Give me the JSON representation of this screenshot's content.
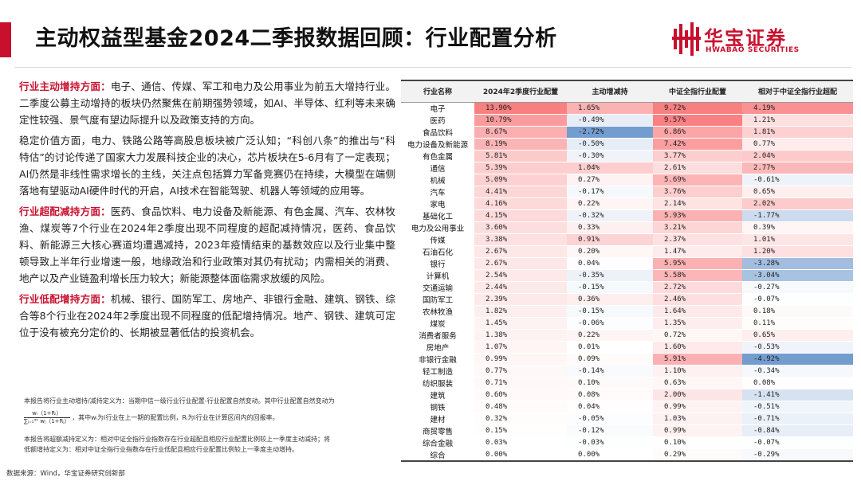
{
  "title": "主动权益型基金2024二季报数据回顾：行业配置分析",
  "logo": {
    "cn": "华宝证券",
    "en": "HWABAO SECURITIES"
  },
  "paragraphs": [
    {
      "head": "行业主动增持方面：",
      "text": "电子、通信、传媒、军工和电力及公用事业为前五大增持行业。二季度公募主动增持的板块仍然聚焦在前期强势领域，如AI、半导体、红利等未来确定性较强、景气度有望边际提升以及政策支持的方向。"
    },
    {
      "head": "",
      "text": "稳定价值方面，电力、铁路公路等高股息板块被广泛认知；“科创八条”的推出与“科特估”的讨论传递了国家大力发展科技企业的决心，芯片板块在5-6月有了一定表现；AI仍然是非线性需求增长的主线，关注点包括算力军备竞赛仍在持续，大模型在端侧落地有望驱动AI硬件时代的开启，AI技术在智能驾驶、机器人等领域的应用等。"
    },
    {
      "head": "行业超配减持方面：",
      "text": "医药、食品饮料、电力设备及新能源、有色金属、汽车、农林牧渔、煤炭等7个行业在2024年2季度出现不同程度的超配减持情况，医药、食品饮料、新能源三大核心赛道均遭遇减持，2023年疫情结束的基数效应以及行业集中整顿导致上半年行业增速一般，地缘政治和行业政策对其仍有扰动；内需相关的消费、地产以及产业链盈利增长压力较大；新能源整体面临需求放缓的风险。"
    },
    {
      "head": "行业低配增持方面：",
      "text": "机械、银行、国防军工、房地产、非银行金融、建筑、钢铁、综合等8个行业在2024年2季度出现不同程度的低配增持情况。地产、钢铁、建筑可定位于没有被充分定价的、长期被显著低估的投资机会。"
    }
  ],
  "notes": {
    "n1": "本报告将行业主动增持/减持定义为：当期中信一级行业行业配置-行业配置自然变动。其中行业配置自然变动为",
    "formula_num": "wᵢ（1+Rᵢ）",
    "formula_den": "∑ⱼ₌₁³⁰ wⱼ（1+Rⱼ）",
    "formula_tail": "，其中wᵢ为i行业在上一期的配置比例，Rᵢ为i行业在计算区间内的回报率。",
    "n2": "本报告将超额减持定义为：相对中证全指行业指数存在行业超配且相应行业配置比例较上一季度主动减持；将",
    "n3": "低额增持定义为：相对中证全指行业指数存在行业低配且相应行业配置比例较上一季度主动增持。"
  },
  "source": "数据来源：Wind，华宝证券研究创新部",
  "table": {
    "headers": [
      "行业名称",
      "2024年2季度行业配置",
      "主动增减持",
      "中证全指行业配置",
      "相对于中证全指行业超配"
    ],
    "rows": [
      [
        "电子",
        "13.90%",
        "1.65%",
        "9.72%",
        "4.19%"
      ],
      [
        "医药",
        "10.79%",
        "-0.49%",
        "9.57%",
        "1.21%"
      ],
      [
        "食品饮料",
        "8.67%",
        "-2.72%",
        "6.86%",
        "1.81%"
      ],
      [
        "电力设备及新能源",
        "8.19%",
        "-0.50%",
        "7.42%",
        "0.77%"
      ],
      [
        "有色金属",
        "5.81%",
        "-0.30%",
        "3.77%",
        "2.04%"
      ],
      [
        "通信",
        "5.39%",
        "1.04%",
        "2.61%",
        "2.77%"
      ],
      [
        "机械",
        "5.09%",
        "0.27%",
        "5.69%",
        "-0.61%"
      ],
      [
        "汽车",
        "4.41%",
        "-0.17%",
        "3.76%",
        "0.65%"
      ],
      [
        "家电",
        "4.16%",
        "0.22%",
        "2.14%",
        "2.02%"
      ],
      [
        "基础化工",
        "4.15%",
        "-0.32%",
        "5.93%",
        "-1.77%"
      ],
      [
        "电力及公用事业",
        "3.60%",
        "0.33%",
        "3.21%",
        "0.39%"
      ],
      [
        "传媒",
        "3.38%",
        "0.91%",
        "2.37%",
        "1.01%"
      ],
      [
        "石油石化",
        "2.67%",
        "0.20%",
        "1.47%",
        "1.20%"
      ],
      [
        "银行",
        "2.67%",
        "0.04%",
        "5.95%",
        "-3.28%"
      ],
      [
        "计算机",
        "2.54%",
        "-0.35%",
        "5.58%",
        "-3.04%"
      ],
      [
        "交通运输",
        "2.44%",
        "-0.15%",
        "2.72%",
        "-0.27%"
      ],
      [
        "国防军工",
        "2.39%",
        "0.36%",
        "2.46%",
        "-0.07%"
      ],
      [
        "农林牧渔",
        "1.82%",
        "-0.15%",
        "1.64%",
        "0.18%"
      ],
      [
        "煤炭",
        "1.45%",
        "-0.06%",
        "1.35%",
        "0.11%"
      ],
      [
        "消费者服务",
        "1.38%",
        "0.22%",
        "0.72%",
        "0.65%"
      ],
      [
        "房地产",
        "1.07%",
        "0.01%",
        "1.60%",
        "-0.53%"
      ],
      [
        "非银行金融",
        "0.99%",
        "0.09%",
        "5.91%",
        "-4.92%"
      ],
      [
        "轻工制造",
        "0.77%",
        "-0.14%",
        "1.10%",
        "-0.34%"
      ],
      [
        "纺织服装",
        "0.71%",
        "0.10%",
        "0.63%",
        "0.08%"
      ],
      [
        "建筑",
        "0.60%",
        "0.08%",
        "2.00%",
        "-1.41%"
      ],
      [
        "钢铁",
        "0.48%",
        "0.04%",
        "0.99%",
        "-0.51%"
      ],
      [
        "建材",
        "0.32%",
        "-0.05%",
        "1.03%",
        "-0.71%"
      ],
      [
        "商贸零售",
        "0.15%",
        "-0.12%",
        "0.99%",
        "-0.84%"
      ],
      [
        "综合金融",
        "0.03%",
        "-0.03%",
        "0.10%",
        "-0.07%"
      ],
      [
        "综合",
        "0.00%",
        "0.00%",
        "0.29%",
        "-0.29%"
      ]
    ]
  },
  "colors": {
    "accent": "#c8102e",
    "pos_strong": "#f8696b",
    "neg_strong": "#5a8ac6"
  }
}
